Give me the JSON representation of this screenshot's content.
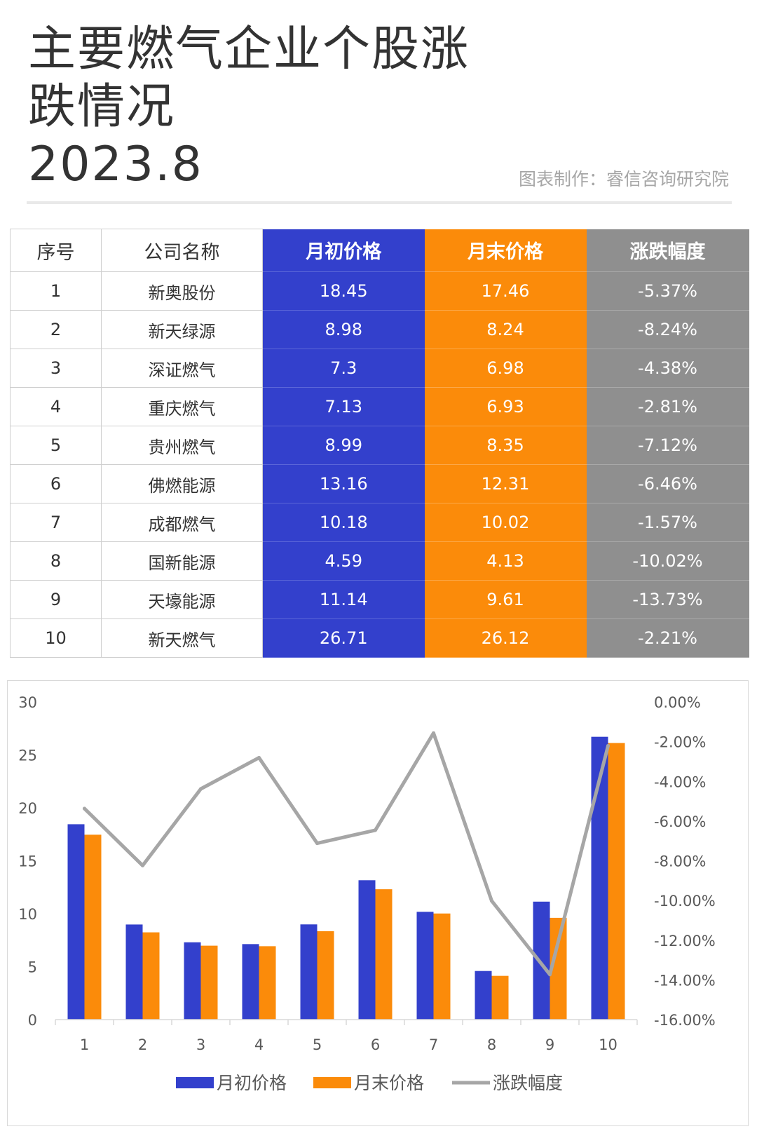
{
  "header": {
    "title_lines": [
      "主要燃气企业个股涨",
      "跌情况",
      "2023.8"
    ],
    "credit": "图表制作：睿信咨询研究院"
  },
  "table": {
    "headers": [
      "序号",
      "公司名称",
      "月初价格",
      "月末价格",
      "涨跌幅度"
    ],
    "rows": [
      [
        "1",
        "新奥股份",
        "18.45",
        "17.46",
        "-5.37%"
      ],
      [
        "2",
        "新天绿源",
        "8.98",
        "8.24",
        "-8.24%"
      ],
      [
        "3",
        "深证燃气",
        "7.3",
        "6.98",
        "-4.38%"
      ],
      [
        "4",
        "重庆燃气",
        "7.13",
        "6.93",
        "-2.81%"
      ],
      [
        "5",
        "贵州燃气",
        "8.99",
        "8.35",
        "-7.12%"
      ],
      [
        "6",
        "佛燃能源",
        "13.16",
        "12.31",
        "-6.46%"
      ],
      [
        "7",
        "成都燃气",
        "10.18",
        "10.02",
        "-1.57%"
      ],
      [
        "8",
        "国新能源",
        "4.59",
        "4.13",
        "-10.02%"
      ],
      [
        "9",
        "天壕能源",
        "11.14",
        "9.61",
        "-13.73%"
      ],
      [
        "10",
        "新天燃气",
        "26.71",
        "26.12",
        "-2.21%"
      ]
    ],
    "colors": {
      "start": "#3340cc",
      "end": "#fb8b0a",
      "change": "#8f8f8f"
    }
  },
  "chart_data": {
    "type": "bar",
    "categories": [
      "1",
      "2",
      "3",
      "4",
      "5",
      "6",
      "7",
      "8",
      "9",
      "10"
    ],
    "series": [
      {
        "name": "月初价格",
        "type": "bar",
        "axis": "left",
        "color": "#3340cc",
        "values": [
          18.45,
          8.98,
          7.3,
          7.13,
          8.99,
          13.16,
          10.18,
          4.59,
          11.14,
          26.71
        ]
      },
      {
        "name": "月末价格",
        "type": "bar",
        "axis": "left",
        "color": "#fb8b0a",
        "values": [
          17.46,
          8.24,
          6.98,
          6.93,
          8.35,
          12.31,
          10.02,
          4.13,
          9.61,
          26.12
        ]
      },
      {
        "name": "涨跌幅度",
        "type": "line",
        "axis": "right",
        "color": "#a6a6a6",
        "values": [
          -5.37,
          -8.24,
          -4.38,
          -2.81,
          -7.12,
          -6.46,
          -1.57,
          -10.02,
          -13.73,
          -2.21
        ]
      }
    ],
    "y_left": {
      "min": 0,
      "max": 30,
      "ticks": [
        "0",
        "5",
        "10",
        "15",
        "20",
        "25",
        "30"
      ]
    },
    "y_right": {
      "min": -16,
      "max": 0,
      "ticks": [
        "-16.00%",
        "-14.00%",
        "-12.00%",
        "-10.00%",
        "-8.00%",
        "-6.00%",
        "-4.00%",
        "-2.00%",
        "0.00%"
      ]
    },
    "grid": false,
    "legend": "bottom"
  }
}
